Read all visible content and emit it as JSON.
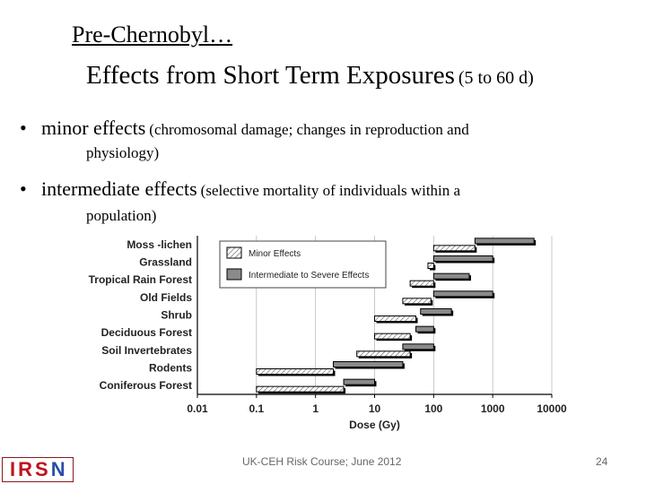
{
  "header": {
    "kicker": "Pre-Chernobyl…",
    "title_main": "Effects from Short Term Exposures",
    "title_range": "(5 to 60 d)"
  },
  "bullets": [
    {
      "marker": "•",
      "lead": "minor effects",
      "detail": "(chromosomal damage; changes in reproduction and",
      "continuation": "physiology)"
    },
    {
      "marker": "•",
      "lead": "intermediate effects",
      "detail": "(selective mortality of individuals within a",
      "continuation": "population)"
    }
  ],
  "chart_data": {
    "type": "bar",
    "orientation": "horizontal-range",
    "x_scale": "log",
    "xlim": [
      0.01,
      10000
    ],
    "xlabel": "Dose (Gy)",
    "x_ticks": [
      "0.01",
      "0.1",
      "1",
      "10",
      "100",
      "1000",
      "10000"
    ],
    "categories": [
      "Moss -lichen",
      "Grassland",
      "Tropical Rain Forest",
      "Old Fields",
      "Shrub",
      "Deciduous Forest",
      "Soil Invertebrates",
      "Rodents",
      "Coniferous Forest"
    ],
    "series": [
      {
        "name": "Minor Effects",
        "ranges": [
          [
            100,
            500
          ],
          [
            80,
            100
          ],
          [
            40,
            100
          ],
          [
            30,
            90
          ],
          [
            10,
            50
          ],
          [
            10,
            40
          ],
          [
            5,
            40
          ],
          [
            0.1,
            2
          ],
          [
            0.1,
            3
          ]
        ]
      },
      {
        "name": "Intermediate to Severe Effects",
        "ranges": [
          [
            500,
            5000
          ],
          [
            100,
            1000
          ],
          [
            100,
            400
          ],
          [
            100,
            1000
          ],
          [
            60,
            200
          ],
          [
            50,
            100
          ],
          [
            30,
            100
          ],
          [
            2,
            30
          ],
          [
            3,
            10
          ]
        ]
      }
    ],
    "legend_position": "top-left",
    "colors": {
      "minor": "#ffffff",
      "severe": "#8a8a8a",
      "axis": "#000000",
      "grid": "#bbbbbb"
    }
  },
  "footer": {
    "course": "UK-CEH Risk Course; June 2012",
    "page": "24",
    "logo_main": "IRS",
    "logo_last": "N"
  }
}
